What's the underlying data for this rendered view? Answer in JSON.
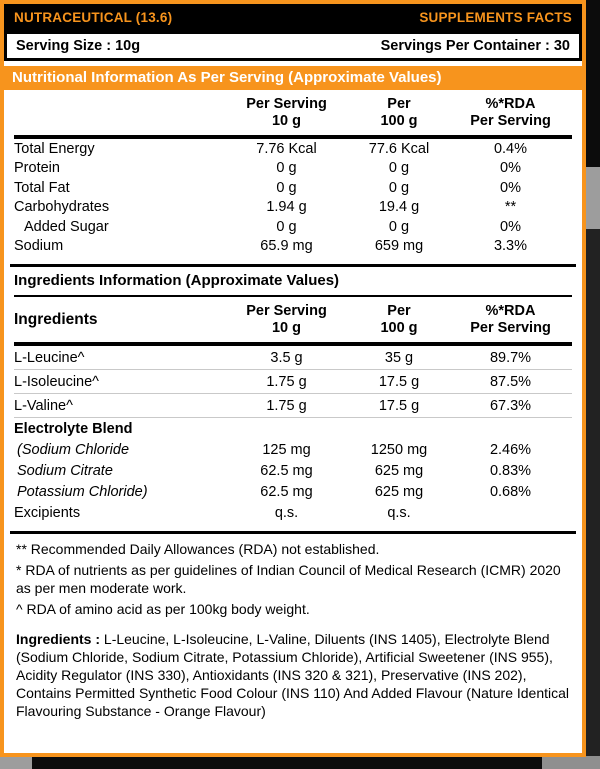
{
  "colors": {
    "accent_orange": "#F7941D",
    "bar_black": "#000000",
    "label_white": "#FFFFFF",
    "package_gray": "#9D9D9D"
  },
  "header": {
    "left": "NUTRACEUTICAL (13.6)",
    "right": "SUPPLEMENTS FACTS"
  },
  "serving": {
    "size": "Serving Size : 10g",
    "per_container": "Servings Per Container : 30"
  },
  "columns": {
    "per_serving_line1": "Per Serving",
    "per_serving_line2": "10 g",
    "per_100_line1": "Per",
    "per_100_line2": "100 g",
    "rda_line1": "%*RDA",
    "rda_line2": "Per Serving"
  },
  "nutrition": {
    "title": "Nutritional Information As Per Serving (Approximate Values)",
    "rows": [
      {
        "label": "Total Energy",
        "per_serving": "7.76 Kcal",
        "per_100": "77.6 Kcal",
        "rda": "0.4%"
      },
      {
        "label": "Protein",
        "per_serving": "0 g",
        "per_100": "0 g",
        "rda": "0%"
      },
      {
        "label": "Total Fat",
        "per_serving": "0 g",
        "per_100": "0 g",
        "rda": "0%"
      },
      {
        "label": "Carbohydrates",
        "per_serving": "1.94 g",
        "per_100": "19.4 g",
        "rda": "**"
      },
      {
        "label": "Added Sugar",
        "per_serving": "0 g",
        "per_100": "0 g",
        "rda": "0%"
      },
      {
        "label": "Sodium",
        "per_serving": "65.9 mg",
        "per_100": "659 mg",
        "rda": "3.3%"
      }
    ]
  },
  "ingredients_table": {
    "title": "Ingredients Information (Approximate Values)",
    "first_column": "Ingredients",
    "rows": [
      {
        "label": "L-Leucine^",
        "per_serving": "3.5 g",
        "per_100": "35 g",
        "rda": "89.7%"
      },
      {
        "label": "L-Isoleucine^",
        "per_serving": "1.75 g",
        "per_100": "17.5 g",
        "rda": "87.5%"
      },
      {
        "label": "L-Valine^",
        "per_serving": "1.75 g",
        "per_100": "17.5 g",
        "rda": "67.3%"
      },
      {
        "label": "Electrolyte Blend",
        "per_serving": "",
        "per_100": "",
        "rda": ""
      },
      {
        "label": "(Sodium Chloride",
        "per_serving": "125 mg",
        "per_100": "1250 mg",
        "rda": "2.46%"
      },
      {
        "label": "Sodium Citrate",
        "per_serving": "62.5 mg",
        "per_100": "625 mg",
        "rda": "0.83%"
      },
      {
        "label": "Potassium Chloride)",
        "per_serving": "62.5 mg",
        "per_100": "625 mg",
        "rda": "0.68%"
      },
      {
        "label": "Excipients",
        "per_serving": "q.s.",
        "per_100": "q.s.",
        "rda": ""
      }
    ]
  },
  "footnotes": [
    "** Recommended Daily Allowances (RDA) not established.",
    "* RDA of nutrients as per guidelines of Indian Council of Medical Research (ICMR) 2020 as per men moderate work.",
    "^ RDA of amino acid as per 100kg body weight."
  ],
  "ingredients_statement": {
    "label": "Ingredients :",
    "text": "L-Leucine, L-Isoleucine, L-Valine, Diluents (INS 1405), Electrolyte Blend (Sodium Chloride, Sodium Citrate, Potassium Chloride), Artificial Sweetener (INS 955), Acidity Regulator (INS 330), Antioxidants (INS 320 & 321), Preservative (INS 202), Contains Permitted Synthetic Food Colour (INS 110) And Added Flavour (Nature Identical Flavouring Substance - Orange Flavour)"
  }
}
